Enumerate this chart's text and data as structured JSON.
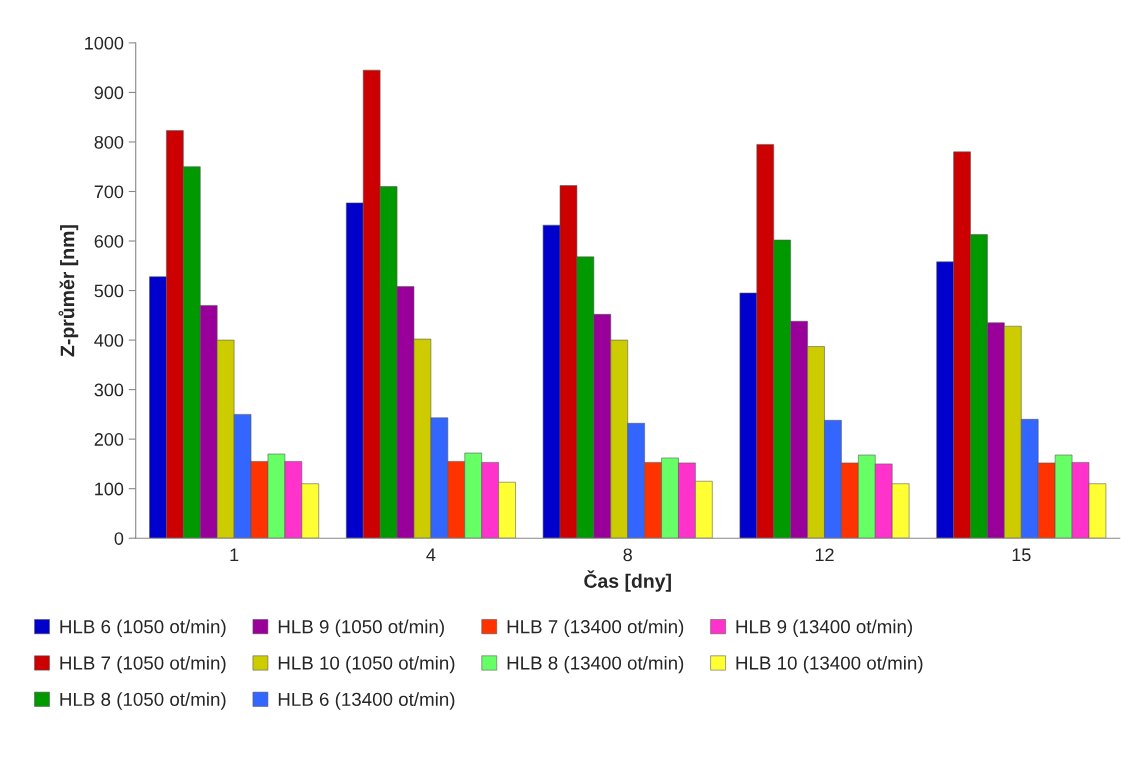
{
  "chart_data": {
    "type": "bar",
    "xlabel": "Čas [dny]",
    "ylabel": "Z-průměr [nm]",
    "categories": [
      "1",
      "4",
      "8",
      "12",
      "15"
    ],
    "series": [
      {
        "name": "HLB 6 (1050 ot/min)",
        "color": "#0000cc",
        "values": [
          528,
          677,
          632,
          495,
          558
        ]
      },
      {
        "name": "HLB 7 (1050 ot/min)",
        "color": "#cc0000",
        "values": [
          823,
          945,
          712,
          795,
          780
        ]
      },
      {
        "name": "HLB 8 (1050 ot/min)",
        "color": "#009900",
        "values": [
          750,
          710,
          568,
          602,
          613
        ]
      },
      {
        "name": "HLB 9 (1050 ot/min)",
        "color": "#990099",
        "values": [
          470,
          508,
          452,
          438,
          435
        ]
      },
      {
        "name": "HLB 10 (1050 ot/min)",
        "color": "#cccc00",
        "values": [
          400,
          402,
          400,
          387,
          428
        ]
      },
      {
        "name": "HLB 6 (13400 ot/min)",
        "color": "#3366ff",
        "values": [
          250,
          243,
          232,
          238,
          240
        ]
      },
      {
        "name": "HLB 7 (13400 ot/min)",
        "color": "#ff3300",
        "values": [
          155,
          155,
          153,
          152,
          152
        ]
      },
      {
        "name": "HLB 8 (13400 ot/min)",
        "color": "#66ff66",
        "values": [
          170,
          172,
          162,
          168,
          168
        ]
      },
      {
        "name": "HLB 9 (13400 ot/min)",
        "color": "#ff33cc",
        "values": [
          155,
          153,
          152,
          150,
          153
        ]
      },
      {
        "name": "HLB 10 (13400 ot/min)",
        "color": "#ffff33",
        "values": [
          110,
          113,
          115,
          110,
          110
        ]
      }
    ],
    "ylim": [
      0,
      1000
    ],
    "yticks": [
      0,
      100,
      200,
      300,
      400,
      500,
      600,
      700,
      800,
      900,
      1000
    ],
    "grid": false,
    "legend": "bottom"
  }
}
